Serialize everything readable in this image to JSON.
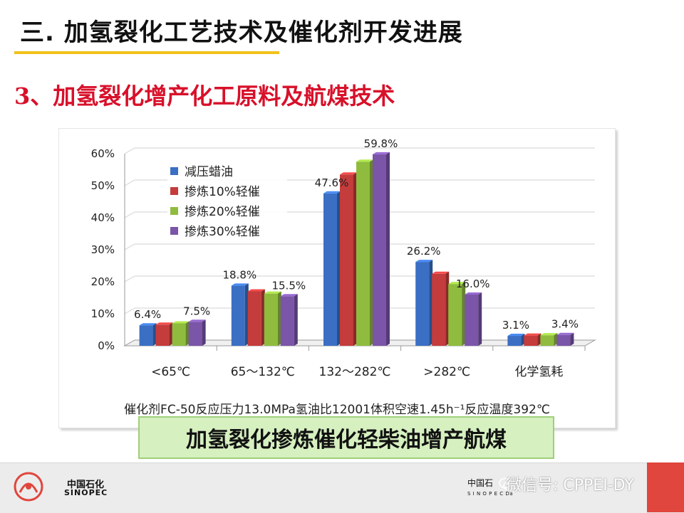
{
  "slide": {
    "title": "三. 加氢裂化工艺技术及催化剂开发进展",
    "section_heading": "3、加氢裂化增产化工原料及航煤技术",
    "caption_box": "加氢裂化掺炼催化轻柴油增产航煤"
  },
  "footer": {
    "logo_cn": "中国石化",
    "logo_en": "SINOPEC",
    "institute_cn": "中国石",
    "institute_en": "S I N O P E C  Da",
    "watermark": "微信号: CPPEI-DY"
  },
  "colors": {
    "series": [
      "#3a6fc4",
      "#c43c3c",
      "#8fbc3e",
      "#7a55a8"
    ],
    "title_rule": "#f2c21a",
    "heading": "#d8102a",
    "caption_bg": "#d6f0c0",
    "footer_accent": "#e0463d"
  },
  "chart_data": {
    "type": "bar",
    "style": "3d clustered",
    "categories": [
      "<65℃",
      "65～132℃",
      "132～282℃",
      ">282℃",
      "化学氢耗"
    ],
    "series": [
      {
        "name": "减压蜡油",
        "values": [
          6.4,
          18.8,
          47.6,
          26.2,
          3.1
        ]
      },
      {
        "name": "掺炼10%轻催",
        "values": [
          6.6,
          17.0,
          53.5,
          22.5,
          3.2
        ]
      },
      {
        "name": "掺炼20%轻催",
        "values": [
          7.0,
          16.3,
          57.5,
          19.3,
          3.3
        ]
      },
      {
        "name": "掺炼30%轻催",
        "values": [
          7.5,
          15.5,
          59.8,
          16.0,
          3.4
        ]
      }
    ],
    "data_labels": [
      {
        "category": 0,
        "series": 0,
        "text": "6.4%"
      },
      {
        "category": 0,
        "series": 3,
        "text": "7.5%"
      },
      {
        "category": 1,
        "series": 0,
        "text": "18.8%"
      },
      {
        "category": 1,
        "series": 3,
        "text": "15.5%"
      },
      {
        "category": 2,
        "series": 0,
        "text": "47.6%"
      },
      {
        "category": 2,
        "series": 3,
        "text": "59.8%"
      },
      {
        "category": 3,
        "series": 0,
        "text": "26.2%"
      },
      {
        "category": 3,
        "series": 3,
        "text": "16.0%"
      },
      {
        "category": 4,
        "series": 0,
        "text": "3.1%"
      },
      {
        "category": 4,
        "series": 3,
        "text": "3.4%"
      }
    ],
    "y_ticks": [
      "0%",
      "10%",
      "20%",
      "30%",
      "40%",
      "50%",
      "60%"
    ],
    "ylim": [
      0,
      60
    ],
    "grid": true,
    "legend_position": "top-left",
    "xlabel": "催化剂FC-50反应压力13.0MPa氢油比12001体积空速1.45h⁻¹反应温度392℃"
  }
}
